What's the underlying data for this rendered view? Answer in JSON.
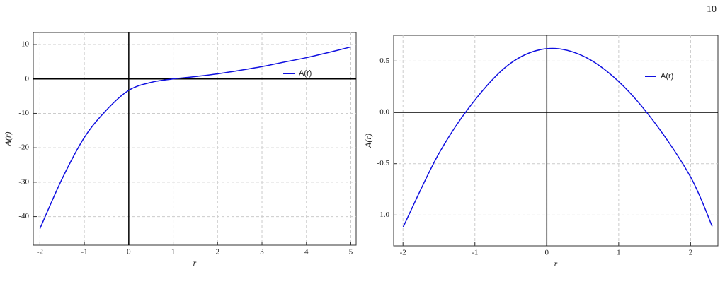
{
  "page_number": "10",
  "chart_data": [
    {
      "type": "line",
      "x_label": "r",
      "y_label": "A(r)",
      "grid": true,
      "legend": "upper right",
      "x": [
        -2,
        -1.5,
        -1,
        -0.5,
        0,
        0.5,
        1,
        1.5,
        2,
        2.5,
        3,
        3.5,
        4,
        4.5,
        5
      ],
      "series": [
        {
          "name": "A(r)",
          "color": "#1010e0",
          "values": [
            -43.5,
            -29,
            -17,
            -9,
            -3.3,
            -1,
            0,
            0.7,
            1.5,
            2.5,
            3.6,
            4.9,
            6.2,
            7.7,
            9.3
          ]
        }
      ],
      "xlim": [
        -2.15,
        5.12
      ],
      "ylim": [
        -48.3,
        13.5
      ],
      "xticks": [
        -2,
        -1,
        0,
        1,
        2,
        3,
        4,
        5
      ],
      "yticks": [
        10,
        0,
        -10,
        -20,
        -30,
        -40
      ]
    },
    {
      "type": "line",
      "x_label": "r",
      "y_label": "A(r)",
      "grid": true,
      "legend": "upper right",
      "x": [
        -2,
        -1.5,
        -1,
        -0.5,
        0,
        0.5,
        1,
        1.5,
        2,
        2.3
      ],
      "series": [
        {
          "name": "A(r)",
          "color": "#1010e0",
          "values": [
            -1.12,
            -0.4,
            0.12,
            0.48,
            0.62,
            0.55,
            0.3,
            -0.1,
            -0.63,
            -1.11
          ]
        }
      ],
      "xlim": [
        -2.13,
        2.38
      ],
      "ylim": [
        -1.3,
        0.75
      ],
      "xticks": [
        -2,
        -1,
        0,
        1,
        2
      ],
      "yticks": [
        0.5,
        {
          "value": 0,
          "label": "0.0"
        },
        -0.5,
        {
          "value": -1,
          "label": "-1.0"
        }
      ]
    }
  ]
}
